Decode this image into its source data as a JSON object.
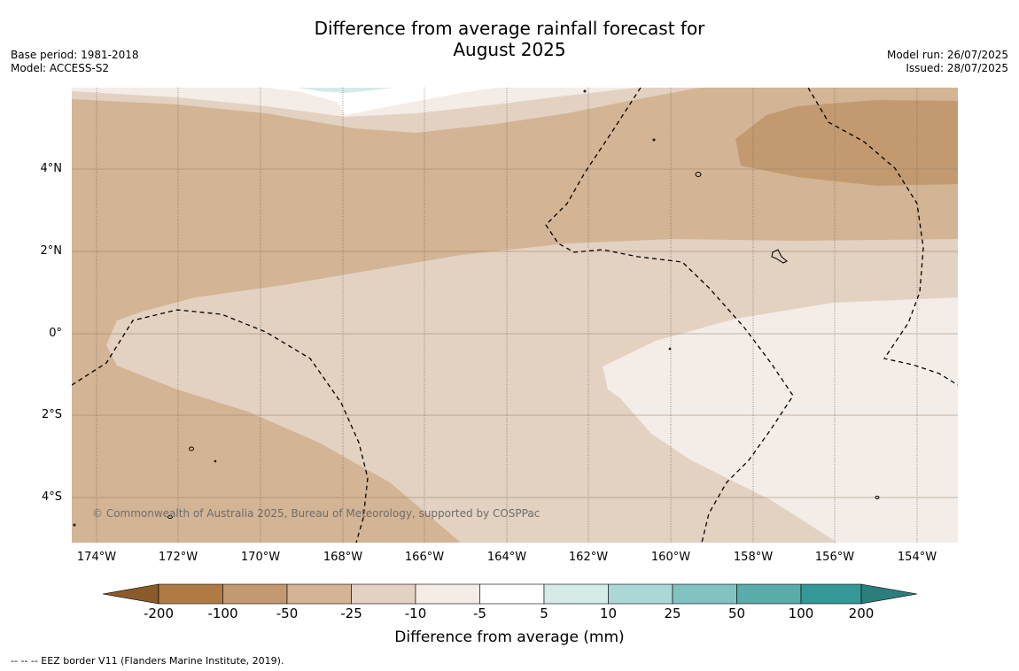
{
  "title_line1": "Difference from average rainfall forecast for",
  "title_line2": "August 2025",
  "base_period": "Base period: 1981-2018",
  "model": "Model: ACCESS-S2",
  "model_run": "Model run: 26/07/2025",
  "issued": "Issued: 28/07/2025",
  "copyright": "© Commonwealth of Australia 2025, Bureau of Meteorology, supported by COSPPac",
  "lat_labels": [
    "4°N",
    "2°N",
    "0°",
    "2°S",
    "4°S"
  ],
  "lon_labels": [
    "174°W",
    "172°W",
    "170°W",
    "168°W",
    "166°W",
    "164°W",
    "162°W",
    "160°W",
    "158°W",
    "156°W",
    "154°W"
  ],
  "colorbar": {
    "title": "Difference from average (mm)",
    "ticks": [
      "-200",
      "-100",
      "-50",
      "-25",
      "-10",
      "-5",
      "5",
      "10",
      "25",
      "50",
      "100",
      "200"
    ],
    "colors": [
      "#8b5a2b",
      "#b07a45",
      "#c39a70",
      "#d3b494",
      "#e3d1c2",
      "#f4ece6",
      "#ffffff",
      "#d4ebe8",
      "#abd8d6",
      "#82c3c1",
      "#5aacab",
      "#339896",
      "#2b7e7c"
    ]
  },
  "footer": "--  --  -- EEZ border V11 (Flanders Marine Institute, 2019).",
  "map_regions": [
    {
      "name": "very-dry-northeast",
      "class": "-100 to -50",
      "color": "#c39a70"
    },
    {
      "name": "dry-band",
      "class": "-50 to -25",
      "color": "#d3b494"
    },
    {
      "name": "moderate-band",
      "class": "-25 to -10",
      "color": "#e3d1c2"
    },
    {
      "name": "slight-band",
      "class": "-10 to -5",
      "color": "#f4ece6"
    },
    {
      "name": "near-normal",
      "class": "-5 to 5",
      "color": "#ffffff"
    },
    {
      "name": "slightly-wet",
      "class": "5 to 10",
      "color": "#d4ebe8"
    }
  ]
}
